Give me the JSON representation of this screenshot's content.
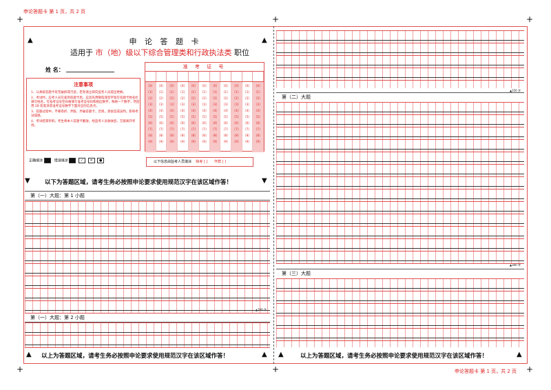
{
  "header": {
    "left": "申论答题卡 第 1 页，共 2 页",
    "right": "申论答题卡 第 1 页，共 2 页"
  },
  "card": {
    "title": "申 论 答 题 卡",
    "line2_prefix": "适用于",
    "line2_red": "市（地）级以下综合管理类和行政执法类",
    "line2_suffix": "职位",
    "name_label": "姓 名："
  },
  "notes": {
    "title": "注意事项",
    "items": [
      "1、认真核答题卡有无破损或污迹，若有请立即向监考人员提出更换。",
      "2、考试时，应考人员在拿到答题卡后，应首先用钢笔或签字笔在答题卡姓名栏填写姓名，在准考证号空白格填写准考证号码和相应数字，每格一个数字，然后用 2B 铅笔涂黑准考证号数字下面对应的信息点。",
      "3、答题过程中，不要卷折、弄脏、弄破答题卡，否则，测会造成误判，影响考试成绩。",
      "4、考试结束铃响，考生将本人答题卡翻放，经监考人员收收后，方能离开考场。"
    ]
  },
  "exam_id": {
    "title": "准 考 证 号",
    "digits": [
      "〔0〕",
      "〔1〕",
      "〔2〕",
      "〔3〕",
      "〔4〕",
      "〔5〕",
      "〔6〕",
      "〔7〕",
      "〔8〕",
      "〔9〕"
    ],
    "column_count": 11
  },
  "fill_example": {
    "label": "正确填涂",
    "wrong_label": "错误填涂",
    "wrong_marks": [
      "✓",
      "✕",
      "●"
    ]
  },
  "proctor": {
    "label": "以下信息由监考人员填涂",
    "absent": "缺考 [ ]",
    "cheat": "作弊 [ ]"
  },
  "instructions": {
    "top": "以下为答题区域，请考生务必按照申论要求使用规范汉字在该区域作答！",
    "bottom_left": "以上为答题区域，请考生务必按照申论要求使用规范汉字在该区域作答！",
    "bottom_right": "以上为答题区域，请考生务必按照申论要求使用规范汉字在该区域作答！"
  },
  "sections": {
    "q1_1": "第（一）大题：第 1 小题",
    "q1_2": "第（一）大题：第 2 小题",
    "q2": "第（二）大题",
    "q3": "第（三）大题"
  },
  "counters": {
    "c200": "▲200 字",
    "c150": "▲150 字",
    "c300": "▲300 字"
  }
}
